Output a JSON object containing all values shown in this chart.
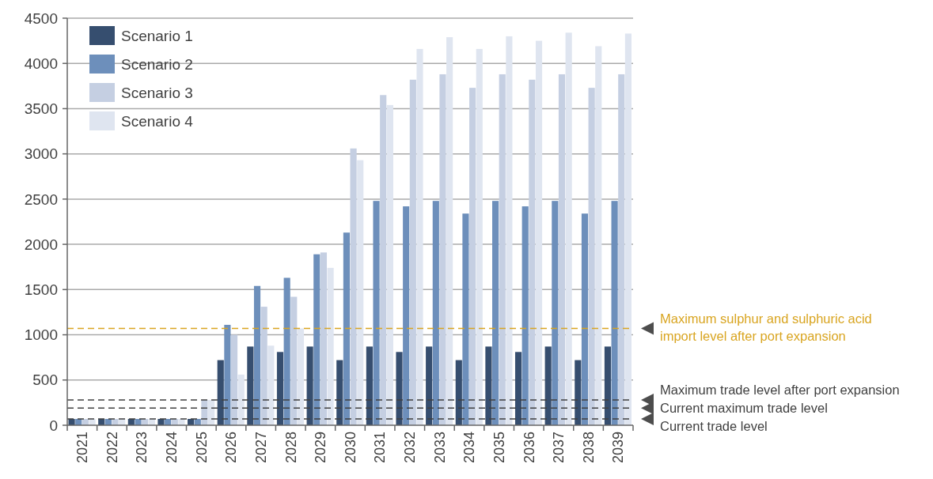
{
  "chart_data": {
    "type": "bar",
    "categories": [
      "2021",
      "2022",
      "2023",
      "2024",
      "2025",
      "2026",
      "2027",
      "2028",
      "2029",
      "2030",
      "2031",
      "2032",
      "2033",
      "2034",
      "2035",
      "2036",
      "2037",
      "2038",
      "2039"
    ],
    "series": [
      {
        "name": "Scenario 1",
        "color": "#364e6f",
        "values": [
          70,
          70,
          70,
          70,
          70,
          720,
          870,
          810,
          870,
          720,
          870,
          810,
          870,
          720,
          870,
          810,
          870,
          720,
          870
        ]
      },
      {
        "name": "Scenario 2",
        "color": "#6d8fbb",
        "values": [
          70,
          70,
          70,
          70,
          70,
          1110,
          1540,
          1630,
          1890,
          2130,
          2480,
          2420,
          2480,
          2340,
          2480,
          2420,
          2480,
          2340,
          2480
        ]
      },
      {
        "name": "Scenario 3",
        "color": "#c5cfe2",
        "values": [
          70,
          70,
          70,
          70,
          280,
          1000,
          1310,
          1420,
          1910,
          3060,
          3650,
          3820,
          3880,
          3730,
          3880,
          3820,
          3880,
          3730,
          3880
        ]
      },
      {
        "name": "Scenario 4",
        "color": "#dfe5f0",
        "values": [
          70,
          70,
          70,
          70,
          280,
          560,
          880,
          1070,
          1740,
          2930,
          3540,
          4160,
          4290,
          4160,
          4300,
          4250,
          4340,
          4190,
          4330
        ]
      }
    ],
    "ylim": [
      0,
      4500
    ],
    "yticks": [
      0,
      500,
      1000,
      1500,
      2000,
      2500,
      3000,
      3500,
      4000,
      4500
    ],
    "grid": "y",
    "legend": "top left",
    "ref_lines": [
      {
        "axis": "y",
        "value": 1070,
        "label": "Maximum sulphur and sulphuric acid import level after port expansion",
        "color": "#d9a521",
        "line_style": "dashed"
      },
      {
        "axis": "y",
        "value": 280,
        "label": "Maximum trade level after port expansion",
        "color": "#404040",
        "line_style": "dashed"
      },
      {
        "axis": "y",
        "value": 190,
        "label": "Current maximum trade level",
        "color": "#404040",
        "line_style": "dashed"
      },
      {
        "axis": "y",
        "value": 70,
        "label": "Current trade level",
        "color": "#404040",
        "line_style": "dashed"
      }
    ]
  }
}
